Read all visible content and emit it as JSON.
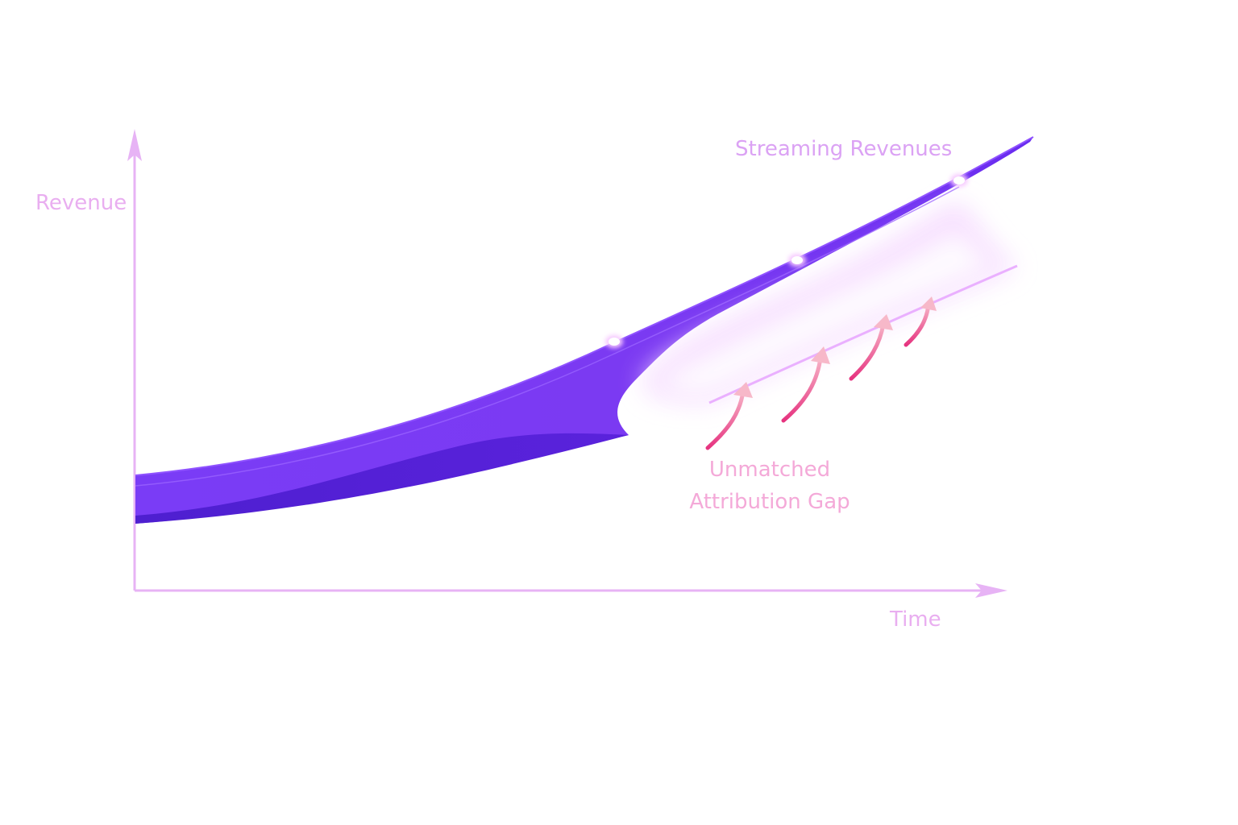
{
  "chart_data": {
    "type": "area",
    "xlabel": "Time",
    "ylabel": "Revenue",
    "grid": false,
    "legend": "none",
    "axis_ticks": false,
    "series": [
      {
        "name": "Streaming Revenues",
        "color": "#7b3cf2",
        "values_relative": [
          0.0,
          0.04,
          0.12,
          0.25,
          0.4,
          0.62,
          0.87,
          1.0
        ]
      }
    ],
    "annotations": [
      {
        "lines": [
          "Unmatched",
          "Attribution Gap"
        ],
        "color": "#f4a9d8"
      }
    ],
    "colors": {
      "axis": "#e7b3f5",
      "axis_label": "#e9aef0",
      "series_label": "#dba2f4",
      "band_light": "#8a49ff",
      "band_dark": "#4a18c8",
      "gap_glow": "#f1d3ff",
      "arrow": "#f06aa8"
    }
  }
}
